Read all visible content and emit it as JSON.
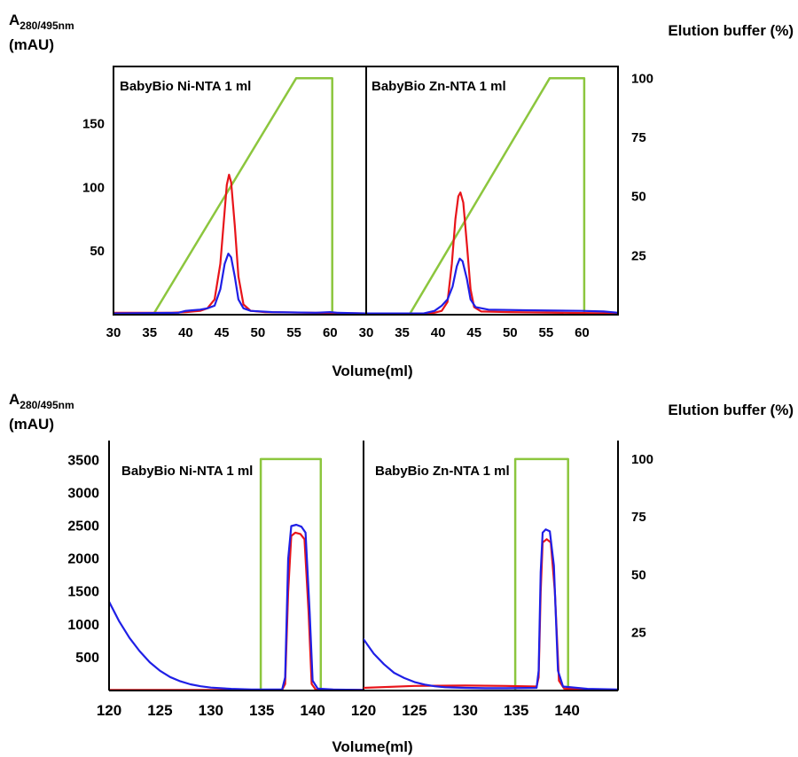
{
  "figure": {
    "panels": [
      {
        "left_axis_title": "A",
        "left_axis_subscript": "280/495nm",
        "left_axis_unit": "(mAU)",
        "right_axis_title": "Elution buffer (%)",
        "x_axis_title": "Volume(ml)"
      },
      {
        "left_axis_title": "A",
        "left_axis_subscript": "280/495nm",
        "left_axis_unit": "(mAU)",
        "right_axis_title": "Elution buffer (%)",
        "x_axis_title": "Volume(ml)"
      }
    ]
  },
  "chart_data": [
    {
      "type": "line",
      "title": "BabyBio Ni-NTA 1 ml",
      "xlim": [
        30,
        65
      ],
      "xticks": [
        30,
        35,
        40,
        45,
        50,
        55,
        60
      ],
      "ylim": [
        0,
        195
      ],
      "yticks": [
        50,
        100,
        150
      ],
      "y2lim": [
        0,
        105
      ],
      "y2ticks": [
        25,
        50,
        75,
        100
      ],
      "series": [
        {
          "color": "#e8141a",
          "axis": "left",
          "points": [
            [
              30,
              1.5
            ],
            [
              38,
              1.5
            ],
            [
              40,
              2
            ],
            [
              42,
              3
            ],
            [
              43,
              5
            ],
            [
              44,
              12
            ],
            [
              44.8,
              40
            ],
            [
              45.3,
              75
            ],
            [
              45.7,
              102
            ],
            [
              46,
              110
            ],
            [
              46.3,
              104
            ],
            [
              46.8,
              70
            ],
            [
              47.3,
              30
            ],
            [
              48,
              8
            ],
            [
              49,
              3
            ],
            [
              51,
              2
            ],
            [
              65,
              1
            ]
          ]
        },
        {
          "color": "#1f1fe6",
          "axis": "left",
          "points": [
            [
              30,
              1
            ],
            [
              39,
              1.5
            ],
            [
              40,
              3
            ],
            [
              41,
              3.5
            ],
            [
              42,
              4
            ],
            [
              43,
              5
            ],
            [
              44,
              7
            ],
            [
              44.8,
              20
            ],
            [
              45.4,
              40
            ],
            [
              45.9,
              48
            ],
            [
              46.3,
              45
            ],
            [
              46.8,
              30
            ],
            [
              47.3,
              12
            ],
            [
              48,
              5
            ],
            [
              49,
              3
            ],
            [
              52,
              2
            ],
            [
              58,
              1.5
            ],
            [
              60,
              2
            ],
            [
              61,
              1.5
            ],
            [
              65,
              1
            ]
          ]
        },
        {
          "color": "#8cc63e",
          "axis": "right",
          "points": [
            [
              35.5,
              0
            ],
            [
              55.3,
              100
            ],
            [
              60.3,
              100
            ],
            [
              60.3,
              0
            ]
          ]
        }
      ]
    },
    {
      "type": "line",
      "title": "BabyBio Zn-NTA 1 ml",
      "xlim": [
        30,
        65
      ],
      "xticks": [
        30,
        35,
        40,
        45,
        50,
        55,
        60
      ],
      "ylim": [
        0,
        195
      ],
      "yticks": [
        50,
        100,
        150
      ],
      "y2lim": [
        0,
        105
      ],
      "y2ticks": [
        25,
        50,
        75,
        100
      ],
      "series": [
        {
          "color": "#e8141a",
          "axis": "left",
          "points": [
            [
              30,
              1
            ],
            [
              38,
              1
            ],
            [
              39.5,
              1.5
            ],
            [
              40.5,
              3
            ],
            [
              41.3,
              10
            ],
            [
              41.9,
              40
            ],
            [
              42.4,
              75
            ],
            [
              42.8,
              93
            ],
            [
              43.1,
              96
            ],
            [
              43.5,
              88
            ],
            [
              44,
              55
            ],
            [
              44.5,
              20
            ],
            [
              45,
              6
            ],
            [
              46,
              2.5
            ],
            [
              50,
              2
            ],
            [
              65,
              1
            ]
          ]
        },
        {
          "color": "#1f1fe6",
          "axis": "left",
          "points": [
            [
              30,
              1
            ],
            [
              38,
              1
            ],
            [
              39.5,
              3
            ],
            [
              40.5,
              7
            ],
            [
              41.3,
              12
            ],
            [
              42,
              22
            ],
            [
              42.6,
              38
            ],
            [
              43,
              44
            ],
            [
              43.4,
              42
            ],
            [
              44,
              28
            ],
            [
              44.5,
              12
            ],
            [
              45.2,
              6
            ],
            [
              47,
              4
            ],
            [
              52,
              3.5
            ],
            [
              60,
              3
            ],
            [
              63,
              2.5
            ],
            [
              65,
              1.5
            ]
          ]
        },
        {
          "color": "#8cc63e",
          "axis": "right",
          "points": [
            [
              36,
              0
            ],
            [
              55.5,
              100
            ],
            [
              60.3,
              100
            ],
            [
              60.3,
              0
            ]
          ]
        }
      ]
    },
    {
      "type": "line",
      "title": "BabyBio Ni-NTA 1 ml",
      "xlim": [
        120,
        145
      ],
      "xticks": [
        120,
        125,
        130,
        135,
        140
      ],
      "ylim": [
        0,
        3800
      ],
      "yticks": [
        500,
        1000,
        1500,
        2000,
        2500,
        3000,
        3500
      ],
      "y2lim": [
        0,
        108
      ],
      "y2ticks": [
        25,
        50,
        75,
        100
      ],
      "series": [
        {
          "color": "#e8141a",
          "axis": "left",
          "points": [
            [
              120,
              10
            ],
            [
              137,
              10
            ],
            [
              137.3,
              100
            ],
            [
              137.6,
              1500
            ],
            [
              137.9,
              2350
            ],
            [
              138.3,
              2400
            ],
            [
              138.8,
              2380
            ],
            [
              139.2,
              2300
            ],
            [
              139.6,
              1200
            ],
            [
              139.9,
              100
            ],
            [
              140.3,
              15
            ],
            [
              145,
              8
            ]
          ]
        },
        {
          "color": "#1f1fe6",
          "axis": "left",
          "points": [
            [
              120,
              1350
            ],
            [
              121,
              1050
            ],
            [
              122,
              800
            ],
            [
              123,
              600
            ],
            [
              124,
              430
            ],
            [
              125,
              300
            ],
            [
              126,
              205
            ],
            [
              127,
              140
            ],
            [
              128,
              95
            ],
            [
              129,
              65
            ],
            [
              130,
              45
            ],
            [
              132,
              25
            ],
            [
              134,
              15
            ],
            [
              137,
              15
            ],
            [
              137.3,
              200
            ],
            [
              137.6,
              2000
            ],
            [
              137.9,
              2500
            ],
            [
              138.4,
              2520
            ],
            [
              138.9,
              2490
            ],
            [
              139.3,
              2400
            ],
            [
              139.7,
              1200
            ],
            [
              140,
              150
            ],
            [
              140.5,
              30
            ],
            [
              142,
              15
            ],
            [
              145,
              10
            ]
          ]
        },
        {
          "color": "#8cc63e",
          "axis": "right",
          "points": [
            [
              134.9,
              0
            ],
            [
              134.9,
              100
            ],
            [
              140.8,
              100
            ],
            [
              140.8,
              0
            ]
          ]
        }
      ]
    },
    {
      "type": "line",
      "title": "BabyBio Zn-NTA 1 ml",
      "xlim": [
        120,
        145
      ],
      "xticks": [
        120,
        125,
        130,
        135,
        140
      ],
      "ylim": [
        0,
        3800
      ],
      "yticks": [
        500,
        1000,
        1500,
        2000,
        2500,
        3000,
        3500
      ],
      "y2lim": [
        0,
        108
      ],
      "y2ticks": [
        25,
        50,
        75,
        100
      ],
      "series": [
        {
          "color": "#e8141a",
          "axis": "left",
          "points": [
            [
              120,
              40
            ],
            [
              125,
              70
            ],
            [
              130,
              75
            ],
            [
              134,
              70
            ],
            [
              137,
              60
            ],
            [
              137.2,
              200
            ],
            [
              137.4,
              1500
            ],
            [
              137.6,
              2250
            ],
            [
              138,
              2300
            ],
            [
              138.4,
              2250
            ],
            [
              138.8,
              1500
            ],
            [
              139.2,
              150
            ],
            [
              139.7,
              30
            ],
            [
              142,
              15
            ],
            [
              145,
              5
            ]
          ]
        },
        {
          "color": "#1f1fe6",
          "axis": "left",
          "points": [
            [
              120,
              780
            ],
            [
              121,
              560
            ],
            [
              122,
              400
            ],
            [
              123,
              270
            ],
            [
              124,
              190
            ],
            [
              125,
              130
            ],
            [
              126,
              90
            ],
            [
              127,
              65
            ],
            [
              128,
              50
            ],
            [
              130,
              40
            ],
            [
              132,
              35
            ],
            [
              134,
              35
            ],
            [
              137,
              40
            ],
            [
              137.2,
              300
            ],
            [
              137.4,
              1800
            ],
            [
              137.6,
              2400
            ],
            [
              137.9,
              2450
            ],
            [
              138.3,
              2420
            ],
            [
              138.7,
              1900
            ],
            [
              139.1,
              300
            ],
            [
              139.6,
              60
            ],
            [
              142,
              25
            ],
            [
              145,
              15
            ]
          ]
        },
        {
          "color": "#8cc63e",
          "axis": "right",
          "points": [
            [
              134.9,
              0
            ],
            [
              134.9,
              100
            ],
            [
              140.1,
              100
            ],
            [
              140.1,
              0
            ]
          ]
        }
      ]
    }
  ]
}
